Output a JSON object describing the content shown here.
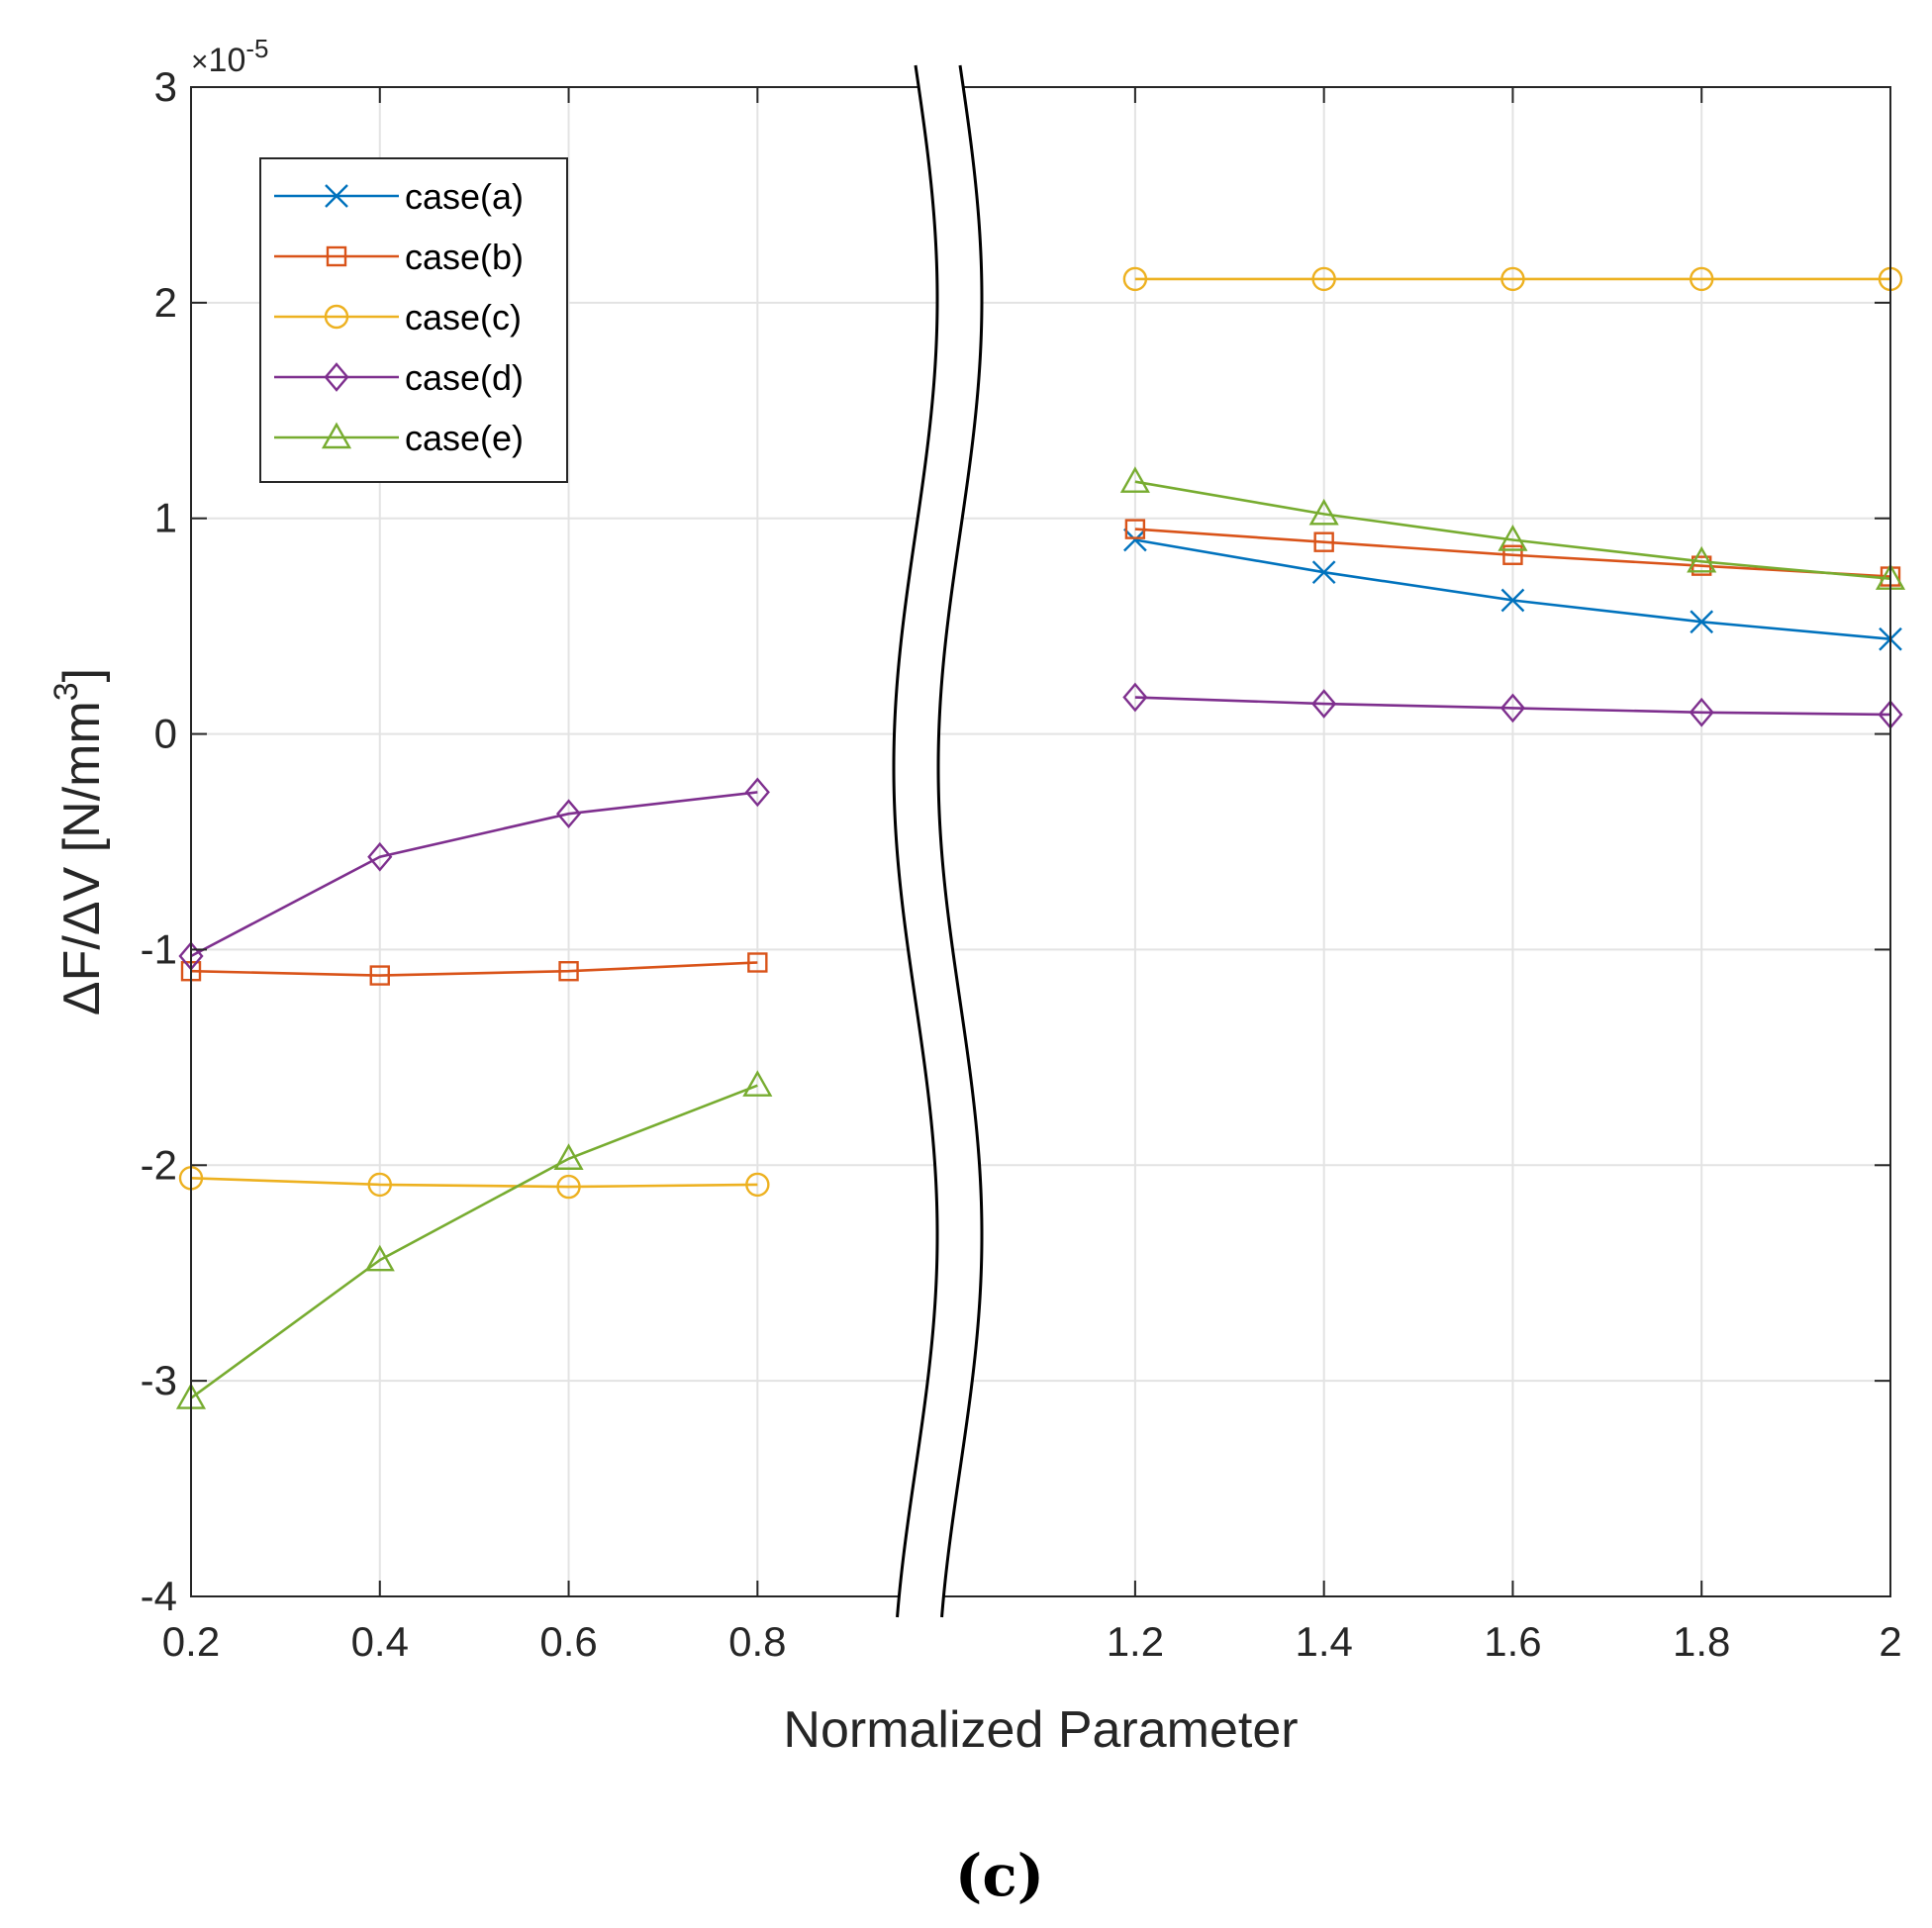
{
  "chart_data": {
    "type": "line",
    "title": "",
    "xlabel": "Normalized Parameter",
    "ylabel": "ΔF/ΔV [N/mm³]",
    "ylabel_prefix": "ΔF/ΔV [N/mm",
    "ylabel_sup": "3",
    "ylabel_suffix": "]",
    "y_multiplier": "×10",
    "y_multiplier_mark": "×",
    "y_multiplier_base": "10",
    "y_multiplier_exp": "-5",
    "xlim": [
      0.2,
      2.0
    ],
    "ylim": [
      -4,
      3
    ],
    "axis_break": [
      0.8,
      1.2
    ],
    "x_ticks": [
      "0.2",
      "0.4",
      "0.6",
      "0.8",
      "1.2",
      "1.4",
      "1.6",
      "1.8",
      "2"
    ],
    "y_ticks": [
      "3",
      "2",
      "1",
      "0",
      "-1",
      "-2",
      "-3",
      "-4"
    ],
    "grid": true,
    "legend_position": "top-left",
    "x": [
      0.2,
      0.4,
      0.6,
      0.8,
      1.2,
      1.4,
      1.6,
      1.8,
      2.0
    ],
    "series": [
      {
        "name": "case(a)",
        "color": "#0072BD",
        "marker": "x",
        "values": [
          null,
          null,
          null,
          null,
          0.9,
          0.75,
          0.62,
          0.52,
          0.44
        ]
      },
      {
        "name": "case(b)",
        "color": "#D95319",
        "marker": "square",
        "values": [
          -1.1,
          -1.12,
          -1.1,
          -1.06,
          0.95,
          0.89,
          0.83,
          0.78,
          0.73
        ]
      },
      {
        "name": "case(c)",
        "color": "#EDB120",
        "marker": "circle",
        "values": [
          -2.06,
          -2.09,
          -2.1,
          -2.09,
          2.11,
          2.11,
          2.11,
          2.11,
          2.11
        ]
      },
      {
        "name": "case(d)",
        "color": "#7E2F8E",
        "marker": "diamond",
        "values": [
          -1.03,
          -0.57,
          -0.37,
          -0.27,
          0.17,
          0.14,
          0.12,
          0.1,
          0.09
        ]
      },
      {
        "name": "case(e)",
        "color": "#77AC30",
        "marker": "triangle",
        "values": [
          -3.08,
          -2.44,
          -1.97,
          -1.63,
          1.17,
          1.02,
          0.9,
          0.8,
          0.72
        ]
      }
    ],
    "caption": "(c)"
  }
}
